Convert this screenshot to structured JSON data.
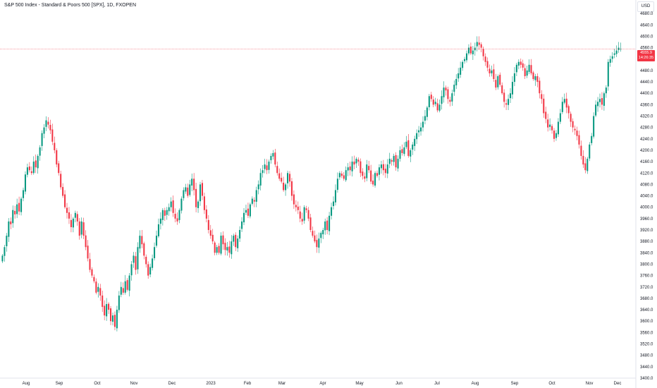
{
  "header": {
    "title": "S&P 500 Index - Standard & Poors 500 [SPX], 1D, FXOPEN",
    "currency": "USD"
  },
  "last_price": {
    "value": "4555.9",
    "countdown": "14:26:35",
    "y": 4555.9
  },
  "colors": {
    "up": "#089981",
    "down": "#f23645",
    "price_line": "#f23645",
    "text": "#131722"
  },
  "chart_data": {
    "type": "candlestick",
    "title": "",
    "ylim": [
      3400,
      4720
    ],
    "yticks": [
      4680.0,
      4640.0,
      4600.0,
      4560.0,
      4520.0,
      4480.0,
      4440.0,
      4400.0,
      4360.0,
      4320.0,
      4280.0,
      4240.0,
      4200.0,
      4160.0,
      4120.0,
      4080.0,
      4040.0,
      4000.0,
      3960.0,
      3920.0,
      3880.0,
      3840.0,
      3800.0,
      3760.0,
      3720.0,
      3680.0,
      3640.0,
      3600.0,
      3560.0,
      3520.0,
      3480.0,
      3440.0,
      3400.0
    ],
    "x_labels": [
      "Aug",
      "Sep",
      "Oct",
      "Nov",
      "Dec",
      "2023",
      "Feb",
      "Mar",
      "Apr",
      "May",
      "Jun",
      "Jul",
      "Aug",
      "Sep",
      "Oct",
      "Nov",
      "Dec"
    ],
    "closes": [
      3830,
      3860,
      3900,
      3950,
      3940,
      3990,
      3975,
      4010,
      3985,
      4030,
      4060,
      4115,
      4140,
      4130,
      4120,
      4160,
      4140,
      4180,
      4210,
      4260,
      4280,
      4305,
      4290,
      4270,
      4230,
      4200,
      4150,
      4120,
      4070,
      4040,
      4000,
      3980,
      3960,
      3930,
      3960,
      3980,
      3950,
      3900,
      3950,
      3900,
      3860,
      3820,
      3780,
      3760,
      3740,
      3700,
      3720,
      3690,
      3650,
      3620,
      3660,
      3640,
      3600,
      3620,
      3580,
      3640,
      3690,
      3720,
      3700,
      3740,
      3710,
      3760,
      3800,
      3830,
      3780,
      3860,
      3900,
      3870,
      3830,
      3800,
      3760,
      3790,
      3820,
      3860,
      3900,
      3940,
      3960,
      3990,
      3970,
      3990,
      4000,
      4020,
      3980,
      3960,
      3950,
      3990,
      4030,
      4060,
      4070,
      4040,
      4080,
      4100,
      4060,
      4000,
      4020,
      4080,
      4040,
      3990,
      3960,
      3920,
      3900,
      3880,
      3840,
      3860,
      3840,
      3900,
      3870,
      3850,
      3860,
      3840,
      3880,
      3900,
      3860,
      3890,
      3920,
      3950,
      3980,
      3990,
      3970,
      4010,
      4030,
      4020,
      4060,
      4080,
      4120,
      4130,
      4150,
      4130,
      4160,
      4180,
      4190,
      4150,
      4120,
      4100,
      4090,
      4060,
      4080,
      4120,
      4090,
      4040,
      4010,
      4000,
      3990,
      3960,
      3950,
      4000,
      3990,
      3960,
      3920,
      3900,
      3880,
      3860,
      3890,
      3910,
      3920,
      3950,
      3920,
      3970,
      4000,
      4020,
      4060,
      4100,
      4120,
      4110,
      4100,
      4130,
      4140,
      4130,
      4160,
      4150,
      4170,
      4160,
      4120,
      4110,
      4100,
      4150,
      4130,
      4090,
      4080,
      4120,
      4110,
      4140,
      4150,
      4130,
      4120,
      4150,
      4170,
      4160,
      4180,
      4140,
      4170,
      4200,
      4190,
      4210,
      4230,
      4180,
      4200,
      4220,
      4240,
      4260,
      4270,
      4280,
      4300,
      4320,
      4350,
      4390,
      4380,
      4360,
      4370,
      4340,
      4360,
      4390,
      4420,
      4410,
      4380,
      4370,
      4400,
      4430,
      4450,
      4470,
      4490,
      4510,
      4520,
      4540,
      4560,
      4540,
      4550,
      4560,
      4580,
      4570,
      4560,
      4530,
      4510,
      4490,
      4470,
      4480,
      4450,
      4420,
      4460,
      4430,
      4400,
      4370,
      4360,
      4380,
      4400,
      4440,
      4470,
      4500,
      4510,
      4500,
      4490,
      4460,
      4480,
      4500,
      4470,
      4450,
      4460,
      4440,
      4400,
      4380,
      4330,
      4310,
      4280,
      4290,
      4270,
      4240,
      4260,
      4300,
      4330,
      4370,
      4380,
      4350,
      4330,
      4300,
      4280,
      4270,
      4250,
      4220,
      4180,
      4150,
      4130,
      4170,
      4220,
      4250,
      4320,
      4360,
      4370,
      4380,
      4360,
      4400,
      4420,
      4510,
      4520,
      4530,
      4540,
      4550,
      4560,
      4555.9
    ]
  }
}
